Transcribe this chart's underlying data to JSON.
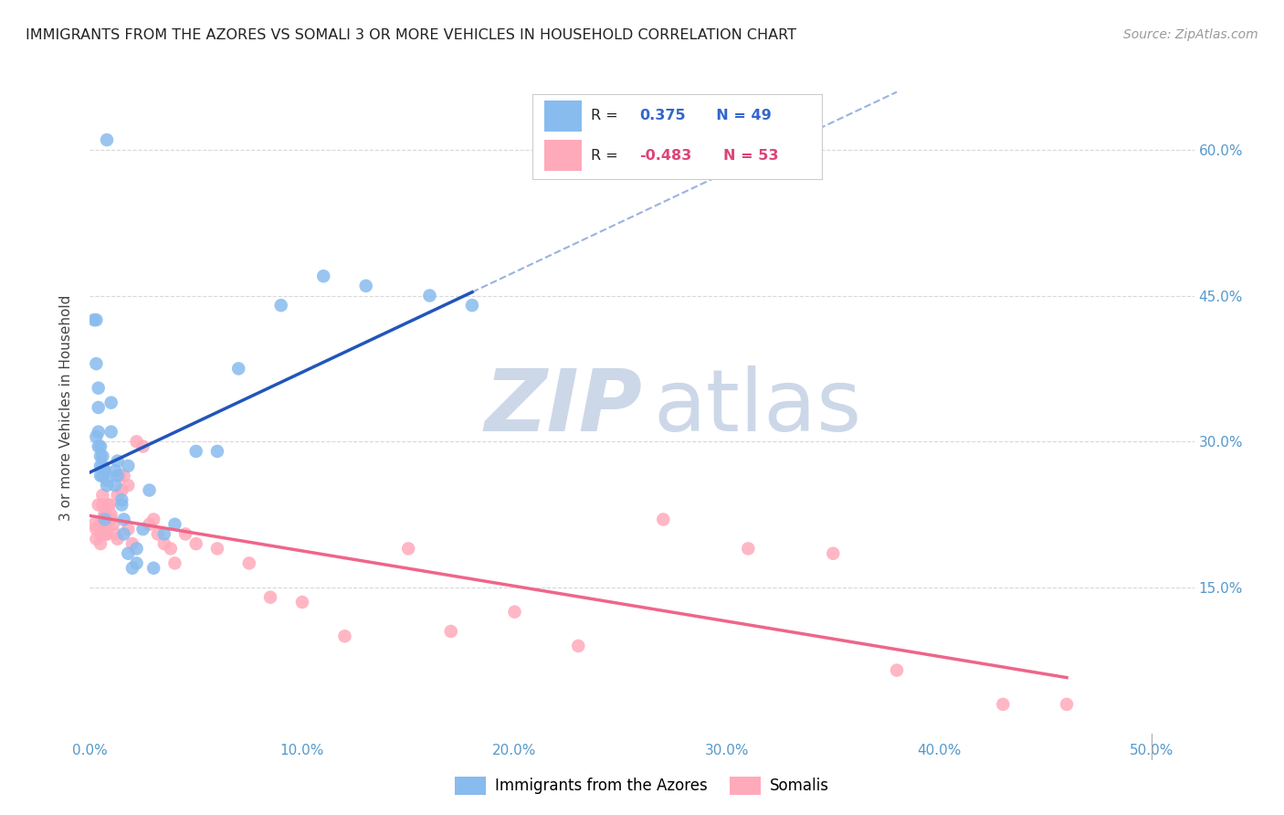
{
  "title": "IMMIGRANTS FROM THE AZORES VS SOMALI 3 OR MORE VEHICLES IN HOUSEHOLD CORRELATION CHART",
  "source": "Source: ZipAtlas.com",
  "ylabel": "3 or more Vehicles in Household",
  "xticklabels": [
    "0.0%",
    "10.0%",
    "20.0%",
    "30.0%",
    "40.0%",
    "50.0%"
  ],
  "xticks": [
    0.0,
    0.1,
    0.2,
    0.3,
    0.4,
    0.5
  ],
  "yticklabels_right": [
    "60.0%",
    "45.0%",
    "30.0%",
    "15.0%"
  ],
  "yticks_right": [
    0.6,
    0.45,
    0.3,
    0.15
  ],
  "xlim": [
    0.0,
    0.52
  ],
  "ylim": [
    0.0,
    0.67
  ],
  "background_color": "#ffffff",
  "grid_color": "#d8d8d8",
  "blue_color": "#88bbee",
  "pink_color": "#ffaabb",
  "blue_line_color": "#2255bb",
  "pink_line_color": "#ee6688",
  "legend_label1": "Immigrants from the Azores",
  "legend_label2": "Somalis",
  "blue_points_x": [
    0.008,
    0.003,
    0.002,
    0.003,
    0.004,
    0.004,
    0.003,
    0.004,
    0.004,
    0.005,
    0.005,
    0.005,
    0.006,
    0.006,
    0.005,
    0.006,
    0.007,
    0.007,
    0.007,
    0.008,
    0.008,
    0.01,
    0.01,
    0.012,
    0.013,
    0.015,
    0.016,
    0.018,
    0.012,
    0.013,
    0.015,
    0.016,
    0.018,
    0.02,
    0.022,
    0.022,
    0.025,
    0.028,
    0.03,
    0.035,
    0.04,
    0.05,
    0.06,
    0.07,
    0.09,
    0.11,
    0.13,
    0.16,
    0.18
  ],
  "blue_points_y": [
    0.61,
    0.425,
    0.425,
    0.38,
    0.335,
    0.355,
    0.305,
    0.31,
    0.295,
    0.295,
    0.285,
    0.275,
    0.285,
    0.275,
    0.265,
    0.265,
    0.27,
    0.27,
    0.22,
    0.255,
    0.26,
    0.34,
    0.31,
    0.255,
    0.265,
    0.235,
    0.205,
    0.185,
    0.27,
    0.28,
    0.24,
    0.22,
    0.275,
    0.17,
    0.175,
    0.19,
    0.21,
    0.25,
    0.17,
    0.205,
    0.215,
    0.29,
    0.29,
    0.375,
    0.44,
    0.47,
    0.46,
    0.45,
    0.44
  ],
  "pink_points_x": [
    0.002,
    0.003,
    0.004,
    0.003,
    0.005,
    0.005,
    0.005,
    0.006,
    0.006,
    0.007,
    0.007,
    0.008,
    0.008,
    0.008,
    0.009,
    0.009,
    0.01,
    0.01,
    0.011,
    0.012,
    0.013,
    0.013,
    0.014,
    0.015,
    0.016,
    0.018,
    0.018,
    0.02,
    0.022,
    0.025,
    0.028,
    0.03,
    0.032,
    0.035,
    0.038,
    0.04,
    0.045,
    0.05,
    0.06,
    0.075,
    0.085,
    0.1,
    0.12,
    0.15,
    0.17,
    0.2,
    0.23,
    0.27,
    0.31,
    0.35,
    0.38,
    0.43,
    0.46
  ],
  "pink_points_y": [
    0.215,
    0.21,
    0.235,
    0.2,
    0.215,
    0.205,
    0.195,
    0.245,
    0.235,
    0.225,
    0.225,
    0.215,
    0.205,
    0.205,
    0.235,
    0.235,
    0.225,
    0.22,
    0.215,
    0.205,
    0.245,
    0.2,
    0.265,
    0.25,
    0.265,
    0.255,
    0.21,
    0.195,
    0.3,
    0.295,
    0.215,
    0.22,
    0.205,
    0.195,
    0.19,
    0.175,
    0.205,
    0.195,
    0.19,
    0.175,
    0.14,
    0.135,
    0.1,
    0.19,
    0.105,
    0.125,
    0.09,
    0.22,
    0.19,
    0.185,
    0.065,
    0.03,
    0.03
  ]
}
